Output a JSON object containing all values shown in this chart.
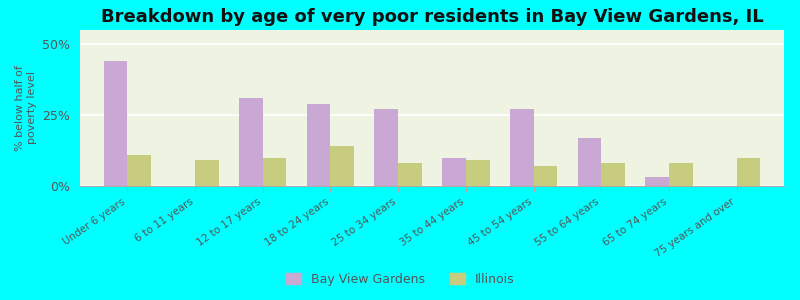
{
  "title": "Breakdown by age of very poor residents in Bay View Gardens, IL",
  "ylabel": "% below half of\npoverty level",
  "categories": [
    "Under 6 years",
    "6 to 11 years",
    "12 to 17 years",
    "18 to 24 years",
    "25 to 34 years",
    "35 to 44 years",
    "45 to 54 years",
    "55 to 64 years",
    "65 to 74 years",
    "75 years and over"
  ],
  "bay_view_values": [
    44,
    0,
    31,
    29,
    27,
    10,
    27,
    17,
    3,
    0
  ],
  "illinois_values": [
    11,
    9,
    10,
    14,
    8,
    9,
    7,
    8,
    8,
    10
  ],
  "bay_view_color": "#c9a8d4",
  "illinois_color": "#c8cc7e",
  "bar_width": 0.35,
  "ylim": [
    0,
    55
  ],
  "yticks": [
    0,
    25,
    50
  ],
  "ytick_labels": [
    "0%",
    "25%",
    "50%"
  ],
  "background_color": "#00ffff",
  "plot_bg_color": "#eef3e2",
  "title_fontsize": 13,
  "legend_bay_view": "Bay View Gardens",
  "legend_illinois": "Illinois"
}
